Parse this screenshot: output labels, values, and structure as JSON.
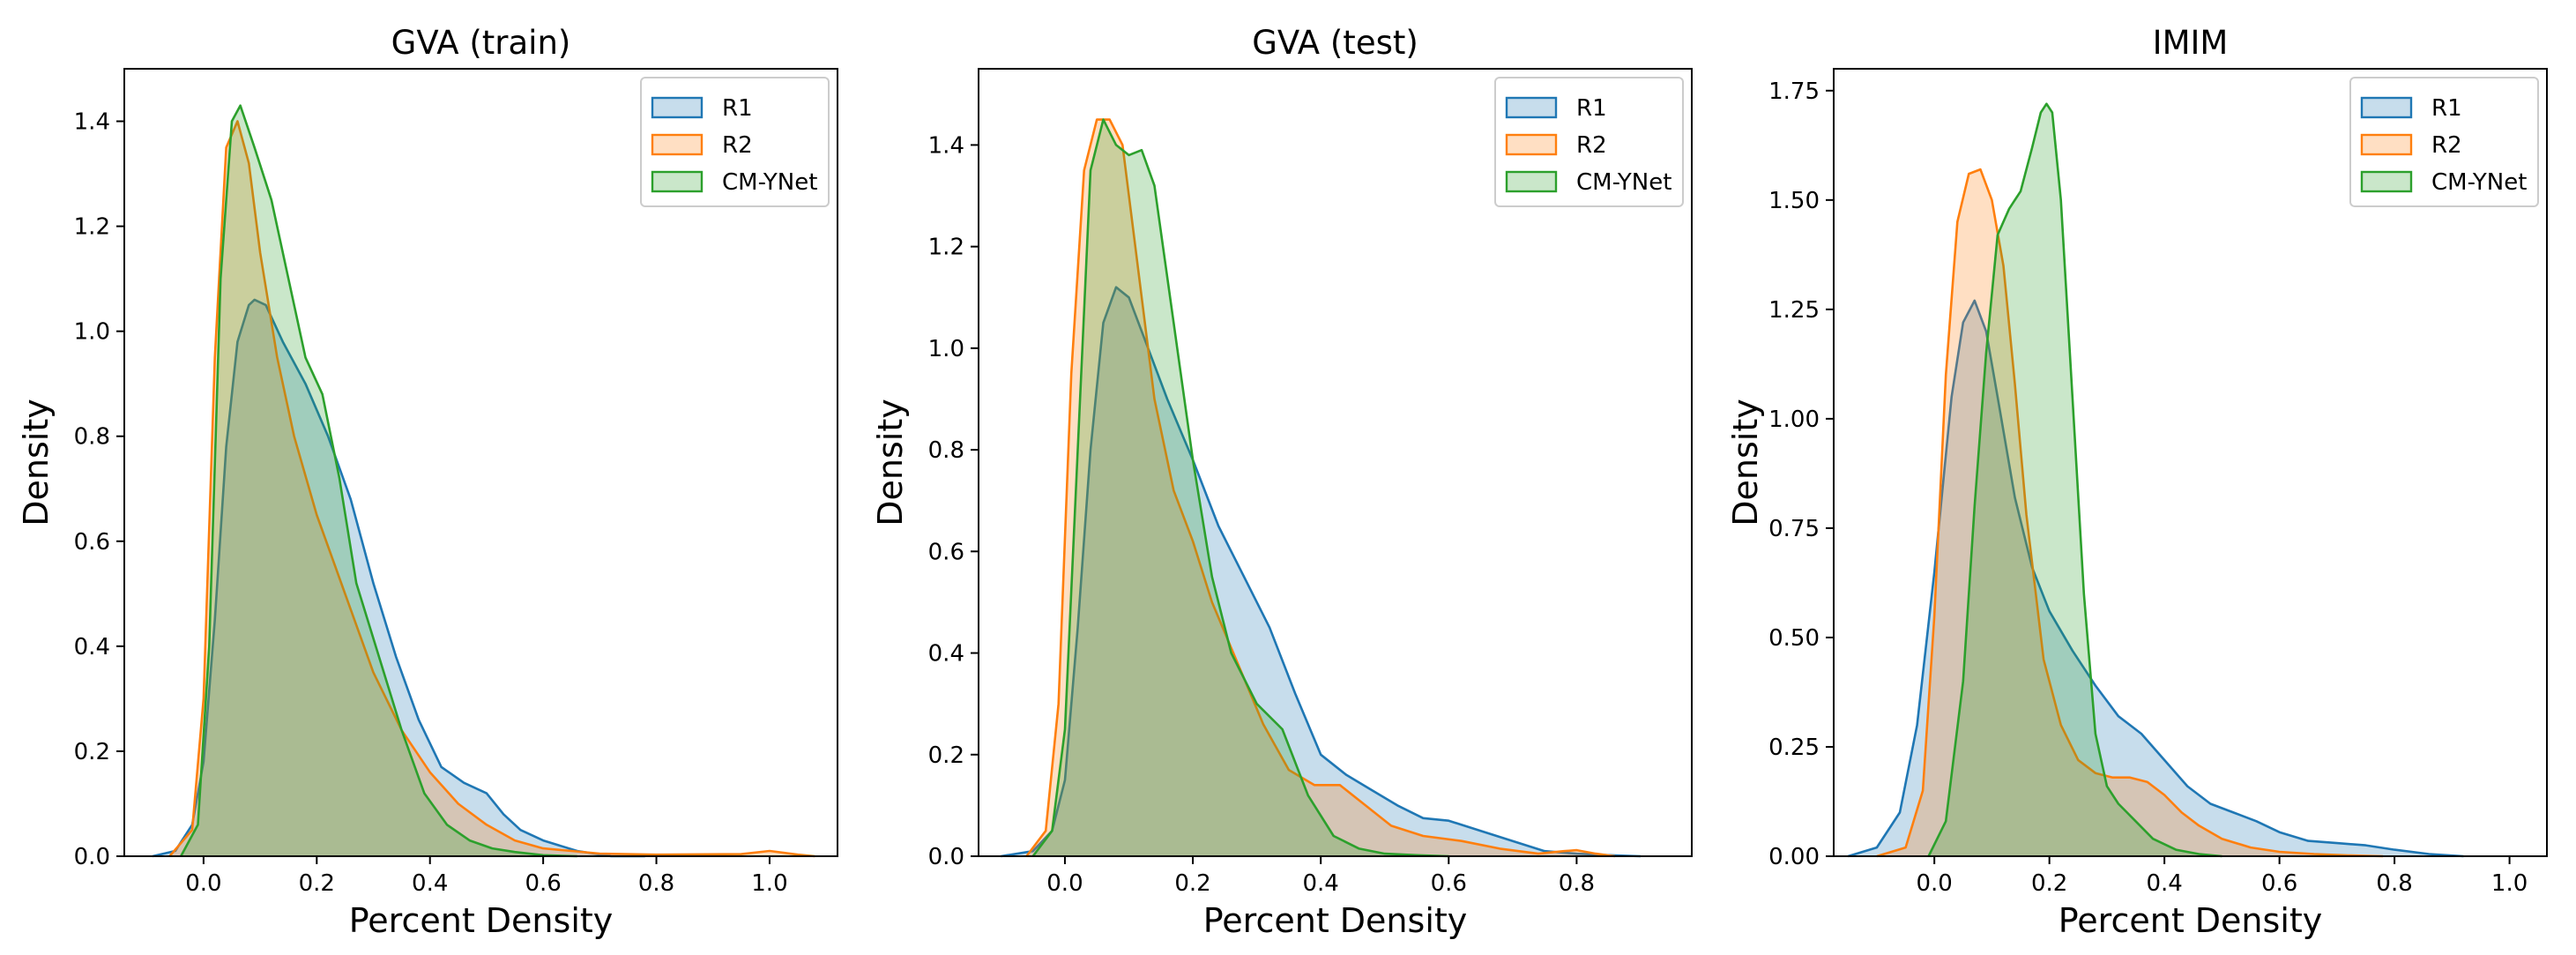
{
  "chart_data": [
    {
      "type": "area",
      "subtype": "kde",
      "title": "GVA (train)",
      "xlabel": "Percent Density",
      "ylabel": "Density",
      "xlim": [
        -0.14,
        1.12
      ],
      "ylim": [
        0,
        1.5
      ],
      "xticks": [
        0.0,
        0.2,
        0.4,
        0.6,
        0.8,
        1.0
      ],
      "xtick_labels": [
        "0.0",
        "0.2",
        "0.4",
        "0.6",
        "0.8",
        "1.0"
      ],
      "yticks": [
        0.0,
        0.2,
        0.4,
        0.6,
        0.8,
        1.0,
        1.2,
        1.4
      ],
      "ytick_labels": [
        "0.0",
        "0.2",
        "0.4",
        "0.6",
        "0.8",
        "1.0",
        "1.2",
        "1.4"
      ],
      "grid": false,
      "legend_position": "top-right",
      "series": [
        {
          "name": "R1",
          "color": "#1f77b4",
          "x": [
            -0.09,
            -0.05,
            -0.02,
            0.0,
            0.02,
            0.04,
            0.06,
            0.08,
            0.09,
            0.11,
            0.14,
            0.18,
            0.22,
            0.26,
            0.3,
            0.34,
            0.38,
            0.42,
            0.46,
            0.5,
            0.53,
            0.56,
            0.6,
            0.66,
            0.72,
            0.78
          ],
          "y": [
            0.0,
            0.01,
            0.06,
            0.18,
            0.45,
            0.78,
            0.98,
            1.05,
            1.06,
            1.05,
            0.98,
            0.9,
            0.8,
            0.68,
            0.52,
            0.38,
            0.26,
            0.17,
            0.14,
            0.12,
            0.08,
            0.05,
            0.03,
            0.01,
            0.0,
            0.0
          ]
        },
        {
          "name": "R2",
          "color": "#ff7f0e",
          "x": [
            -0.06,
            -0.02,
            0.0,
            0.02,
            0.04,
            0.06,
            0.08,
            0.1,
            0.13,
            0.16,
            0.2,
            0.25,
            0.3,
            0.35,
            0.4,
            0.45,
            0.5,
            0.55,
            0.6,
            0.65,
            0.7,
            0.8,
            0.95,
            1.0,
            1.05,
            1.08
          ],
          "y": [
            0.0,
            0.05,
            0.3,
            0.95,
            1.35,
            1.4,
            1.32,
            1.15,
            0.95,
            0.8,
            0.65,
            0.5,
            0.35,
            0.24,
            0.16,
            0.1,
            0.06,
            0.03,
            0.015,
            0.01,
            0.005,
            0.003,
            0.004,
            0.01,
            0.003,
            0.0
          ]
        },
        {
          "name": "CM-YNet",
          "color": "#2ca02c",
          "x": [
            -0.04,
            -0.01,
            0.01,
            0.03,
            0.05,
            0.065,
            0.09,
            0.12,
            0.15,
            0.18,
            0.21,
            0.24,
            0.27,
            0.31,
            0.35,
            0.39,
            0.43,
            0.47,
            0.51,
            0.55,
            0.6,
            0.66
          ],
          "y": [
            0.0,
            0.06,
            0.4,
            1.1,
            1.4,
            1.43,
            1.35,
            1.25,
            1.1,
            0.95,
            0.88,
            0.72,
            0.52,
            0.38,
            0.24,
            0.12,
            0.06,
            0.03,
            0.015,
            0.008,
            0.002,
            0.0
          ]
        }
      ]
    },
    {
      "type": "area",
      "subtype": "kde",
      "title": "GVA (test)",
      "xlabel": "Percent Density",
      "ylabel": "Density",
      "xlim": [
        -0.135,
        0.98
      ],
      "ylim": [
        0,
        1.55
      ],
      "xticks": [
        0.0,
        0.2,
        0.4,
        0.6,
        0.8
      ],
      "xtick_labels": [
        "0.0",
        "0.2",
        "0.4",
        "0.6",
        "0.8"
      ],
      "yticks": [
        0.0,
        0.2,
        0.4,
        0.6,
        0.8,
        1.0,
        1.2,
        1.4
      ],
      "ytick_labels": [
        "0.0",
        "0.2",
        "0.4",
        "0.6",
        "0.8",
        "1.0",
        "1.2",
        "1.4"
      ],
      "grid": false,
      "legend_position": "top-right",
      "series": [
        {
          "name": "R1",
          "color": "#1f77b4",
          "x": [
            -0.1,
            -0.05,
            -0.02,
            0.0,
            0.02,
            0.04,
            0.06,
            0.08,
            0.1,
            0.13,
            0.16,
            0.2,
            0.24,
            0.28,
            0.32,
            0.36,
            0.4,
            0.44,
            0.48,
            0.52,
            0.56,
            0.6,
            0.65,
            0.7,
            0.75,
            0.8,
            0.85,
            0.9
          ],
          "y": [
            0.0,
            0.01,
            0.05,
            0.15,
            0.45,
            0.8,
            1.05,
            1.12,
            1.1,
            1.0,
            0.9,
            0.78,
            0.65,
            0.55,
            0.45,
            0.32,
            0.2,
            0.16,
            0.13,
            0.1,
            0.075,
            0.07,
            0.05,
            0.03,
            0.01,
            0.005,
            0.002,
            0.0
          ]
        },
        {
          "name": "R2",
          "color": "#ff7f0e",
          "x": [
            -0.06,
            -0.03,
            -0.01,
            0.01,
            0.03,
            0.05,
            0.07,
            0.09,
            0.11,
            0.14,
            0.17,
            0.2,
            0.23,
            0.27,
            0.31,
            0.35,
            0.39,
            0.43,
            0.47,
            0.51,
            0.56,
            0.62,
            0.68,
            0.74,
            0.78,
            0.8,
            0.83,
            0.86
          ],
          "y": [
            0.0,
            0.05,
            0.3,
            0.95,
            1.35,
            1.45,
            1.45,
            1.4,
            1.2,
            0.9,
            0.72,
            0.62,
            0.5,
            0.38,
            0.26,
            0.17,
            0.14,
            0.14,
            0.1,
            0.06,
            0.04,
            0.03,
            0.015,
            0.005,
            0.01,
            0.012,
            0.005,
            0.0
          ]
        },
        {
          "name": "CM-YNet",
          "color": "#2ca02c",
          "x": [
            -0.05,
            -0.02,
            0.0,
            0.02,
            0.04,
            0.06,
            0.08,
            0.1,
            0.12,
            0.14,
            0.17,
            0.2,
            0.23,
            0.26,
            0.3,
            0.34,
            0.38,
            0.42,
            0.46,
            0.5,
            0.55,
            0.6
          ],
          "y": [
            0.0,
            0.05,
            0.25,
            0.8,
            1.35,
            1.45,
            1.4,
            1.38,
            1.39,
            1.32,
            1.05,
            0.78,
            0.55,
            0.4,
            0.3,
            0.25,
            0.12,
            0.04,
            0.015,
            0.005,
            0.002,
            0.0
          ]
        }
      ]
    },
    {
      "type": "area",
      "subtype": "kde",
      "title": "IMIM",
      "xlabel": "Percent Density",
      "ylabel": "Density",
      "xlim": [
        -0.175,
        1.065
      ],
      "ylim": [
        0,
        1.8
      ],
      "xticks": [
        0.0,
        0.2,
        0.4,
        0.6,
        0.8,
        1.0
      ],
      "xtick_labels": [
        "0.0",
        "0.2",
        "0.4",
        "0.6",
        "0.8",
        "1.0"
      ],
      "yticks": [
        0.0,
        0.25,
        0.5,
        0.75,
        1.0,
        1.25,
        1.5,
        1.75
      ],
      "ytick_labels": [
        "0.00",
        "0.25",
        "0.50",
        "0.75",
        "1.00",
        "1.25",
        "1.50",
        "1.75"
      ],
      "grid": false,
      "legend_position": "top-right",
      "series": [
        {
          "name": "R1",
          "color": "#1f77b4",
          "x": [
            -0.15,
            -0.1,
            -0.06,
            -0.03,
            0.0,
            0.03,
            0.05,
            0.07,
            0.09,
            0.11,
            0.14,
            0.17,
            0.2,
            0.24,
            0.28,
            0.32,
            0.36,
            0.4,
            0.44,
            0.48,
            0.52,
            0.56,
            0.6,
            0.65,
            0.7,
            0.75,
            0.8,
            0.86,
            0.92
          ],
          "y": [
            0.0,
            0.02,
            0.1,
            0.3,
            0.65,
            1.05,
            1.22,
            1.27,
            1.2,
            1.05,
            0.82,
            0.66,
            0.56,
            0.47,
            0.39,
            0.32,
            0.28,
            0.22,
            0.16,
            0.12,
            0.1,
            0.08,
            0.055,
            0.035,
            0.03,
            0.025,
            0.015,
            0.005,
            0.0
          ]
        },
        {
          "name": "R2",
          "color": "#ff7f0e",
          "x": [
            -0.1,
            -0.05,
            -0.02,
            0.0,
            0.02,
            0.04,
            0.06,
            0.08,
            0.1,
            0.12,
            0.14,
            0.16,
            0.19,
            0.22,
            0.25,
            0.28,
            0.31,
            0.34,
            0.37,
            0.4,
            0.43,
            0.46,
            0.5,
            0.55,
            0.6,
            0.66,
            0.72,
            0.78
          ],
          "y": [
            0.0,
            0.02,
            0.15,
            0.55,
            1.1,
            1.45,
            1.56,
            1.57,
            1.5,
            1.35,
            1.08,
            0.78,
            0.45,
            0.3,
            0.22,
            0.19,
            0.18,
            0.18,
            0.17,
            0.14,
            0.1,
            0.07,
            0.04,
            0.02,
            0.01,
            0.005,
            0.002,
            0.0
          ]
        },
        {
          "name": "CM-YNet",
          "color": "#2ca02c",
          "x": [
            -0.01,
            0.02,
            0.05,
            0.07,
            0.09,
            0.11,
            0.13,
            0.15,
            0.17,
            0.185,
            0.195,
            0.205,
            0.22,
            0.24,
            0.26,
            0.28,
            0.3,
            0.32,
            0.35,
            0.38,
            0.42,
            0.46,
            0.5
          ],
          "y": [
            0.0,
            0.08,
            0.4,
            0.8,
            1.15,
            1.42,
            1.48,
            1.52,
            1.62,
            1.7,
            1.72,
            1.7,
            1.5,
            1.05,
            0.6,
            0.28,
            0.16,
            0.12,
            0.08,
            0.04,
            0.015,
            0.005,
            0.0
          ]
        }
      ]
    }
  ]
}
